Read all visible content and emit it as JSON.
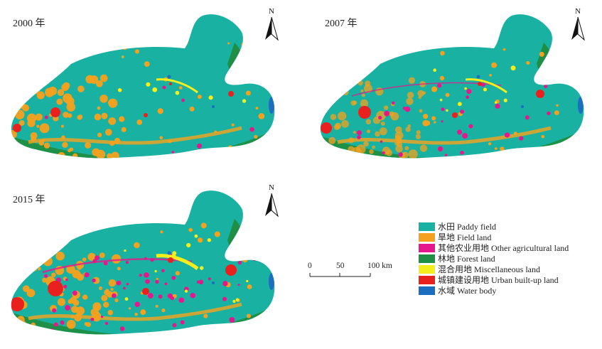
{
  "panels": [
    {
      "id": "panel-2000",
      "year_label": "2000 年",
      "north_label": "N"
    },
    {
      "id": "panel-2007",
      "year_label": "2007 年",
      "north_label": "N"
    },
    {
      "id": "panel-2015",
      "year_label": "2015 年",
      "north_label": "N"
    }
  ],
  "legend": [
    {
      "label": "水田 Paddy field",
      "color": "#19b2a2"
    },
    {
      "label": "旱地 Field land",
      "color": "#f6a11e"
    },
    {
      "label": "其他农业用地 Other agricultural land",
      "color": "#e6168c"
    },
    {
      "label": "林地 Forest land",
      "color": "#1f8f45"
    },
    {
      "label": "混合用地 Miscellaneous land",
      "color": "#f4ef1c"
    },
    {
      "label": "城镇建设用地 Urban built-up land",
      "color": "#e8211e"
    },
    {
      "label": "水域 Water body",
      "color": "#1c6fc0"
    }
  ],
  "scale_bar": {
    "ticks": [
      "0",
      "50",
      "100 km"
    ]
  }
}
